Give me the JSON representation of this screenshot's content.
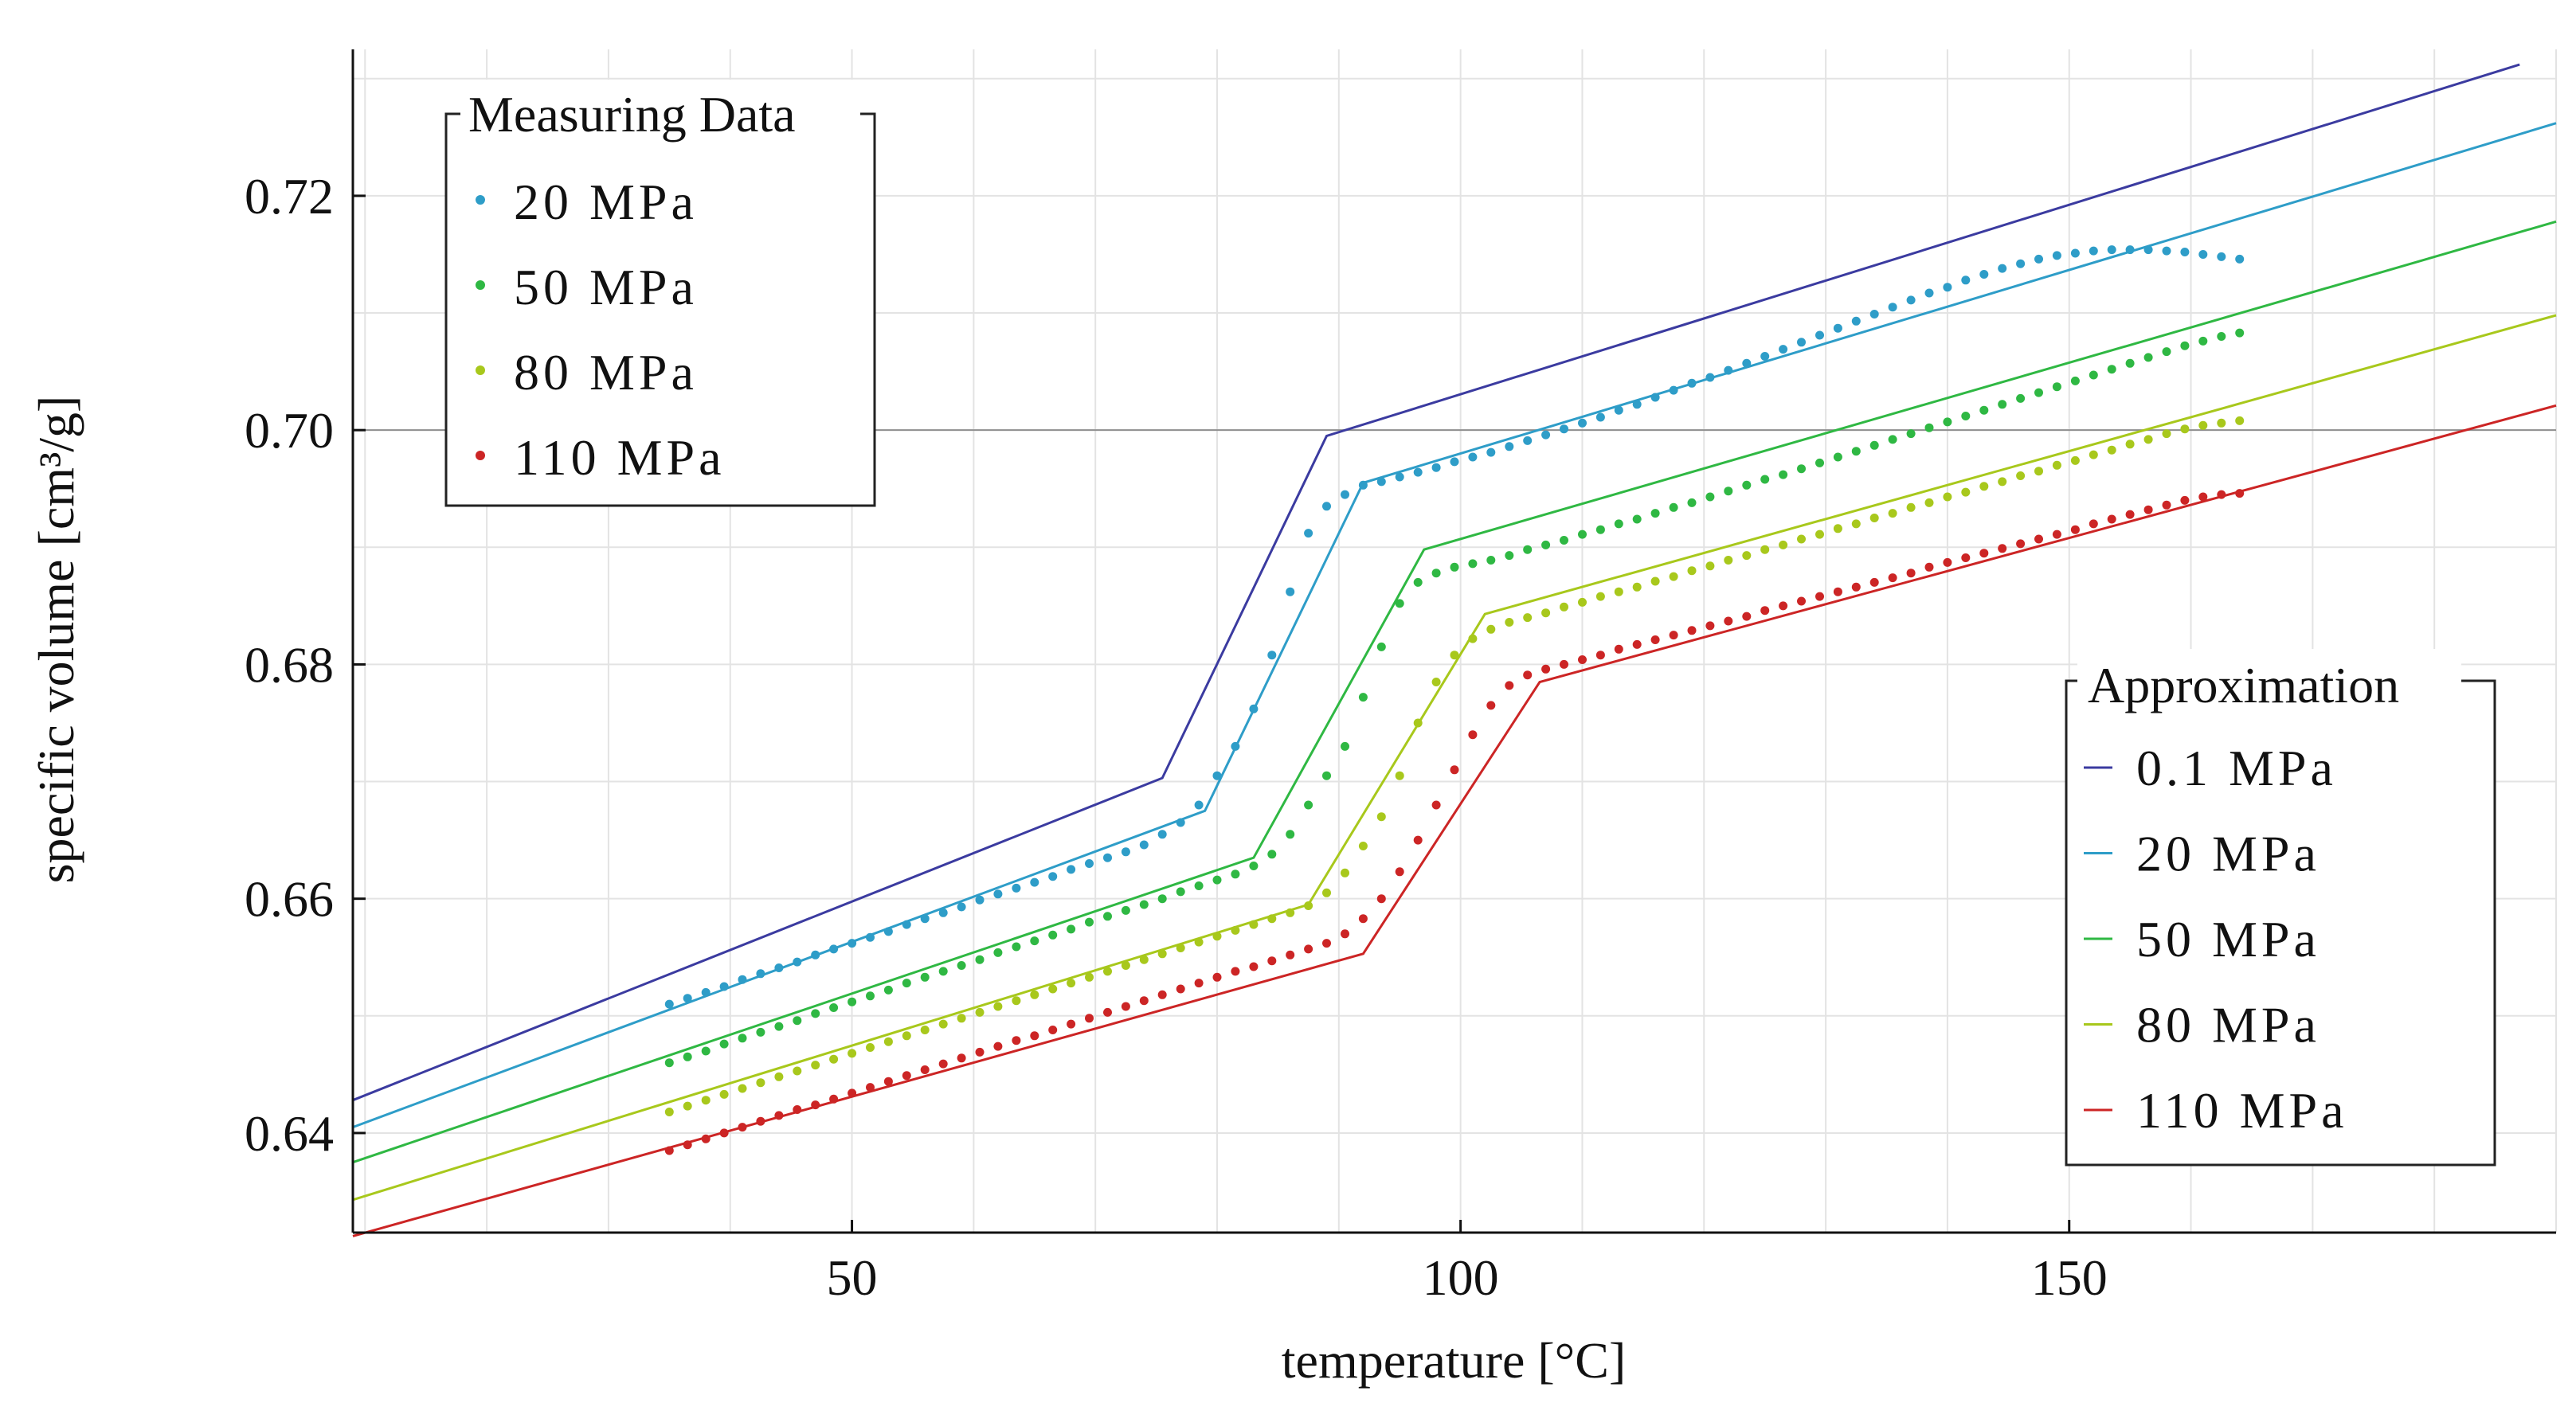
{
  "chart_data": {
    "type": "scatter",
    "xlabel": "temperature [°C]",
    "ylabel": "specific volume [cm³/g]",
    "xlim": [
      9,
      190
    ],
    "ylim": [
      0.6315,
      0.7325
    ],
    "x_ticks": [
      50,
      100,
      150
    ],
    "x_tick_labels": [
      "50",
      "100",
      "150"
    ],
    "y_ticks": [
      0.64,
      0.66,
      0.68,
      0.7,
      0.72
    ],
    "y_tick_labels": [
      "0.64",
      "0.66",
      "0.68",
      "0.70",
      "0.72"
    ],
    "x_minor_step": 10,
    "y_minor_step": 0.01,
    "highlight_y": 0.7,
    "grid": true,
    "measuring_legend": {
      "title": "Measuring Data",
      "position": "top-left",
      "entries": [
        "20 MPa",
        "50 MPa",
        "80 MPa",
        "110 MPa"
      ]
    },
    "approximation_legend": {
      "title": "Approximation",
      "position": "bottom-right",
      "entries": [
        "0.1 MPa",
        "20 MPa",
        "50 MPa",
        "80 MPa",
        "110 MPa"
      ]
    },
    "approximation_series": [
      {
        "name": "0.1 MPa",
        "color": "#3b3ba0",
        "x": [
          9,
          75.5,
          89,
          187
        ],
        "y": [
          0.6428,
          0.6703,
          0.6995,
          0.7312
        ]
      },
      {
        "name": "20 MPa",
        "color": "#2e9dc8",
        "x": [
          9,
          79,
          92,
          190
        ],
        "y": [
          0.6405,
          0.6675,
          0.6955,
          0.7262
        ]
      },
      {
        "name": "50 MPa",
        "color": "#2fb843",
        "x": [
          9,
          83,
          97,
          190
        ],
        "y": [
          0.6375,
          0.6635,
          0.6898,
          0.7178
        ]
      },
      {
        "name": "80 MPa",
        "color": "#a8c81c",
        "x": [
          9,
          87.5,
          102,
          190
        ],
        "y": [
          0.6343,
          0.6595,
          0.6843,
          0.7098
        ]
      },
      {
        "name": "110 MPa",
        "color": "#cc2525",
        "x": [
          9,
          92,
          106.5,
          190
        ],
        "y": [
          0.6312,
          0.6553,
          0.6785,
          0.7021
        ]
      }
    ],
    "measuring_series": [
      {
        "name": "20 MPa",
        "color": "#2e9dc8",
        "x": [
          35,
          36.5,
          38,
          39.5,
          41,
          42.5,
          44,
          45.5,
          47,
          48.5,
          50,
          51.5,
          53,
          54.5,
          56,
          57.5,
          59,
          60.5,
          62,
          63.5,
          65,
          66.5,
          68,
          69.5,
          71,
          72.5,
          74,
          75.5,
          77,
          78.5,
          80,
          81.5,
          83,
          84.5,
          86,
          87.5,
          89,
          90.5,
          92,
          93.5,
          95,
          96.5,
          98,
          99.5,
          101,
          102.5,
          104,
          105.5,
          107,
          108.5,
          110,
          111.5,
          113,
          114.5,
          116,
          117.5,
          119,
          120.5,
          122,
          123.5,
          125,
          126.5,
          128,
          129.5,
          131,
          132.5,
          134,
          135.5,
          137,
          138.5,
          140,
          141.5,
          143,
          144.5,
          146,
          147.5,
          149,
          150.5,
          152,
          153.5,
          155,
          156.5,
          158,
          159.5,
          161,
          162.5,
          164
        ],
        "y": [
          0.651,
          0.6515,
          0.652,
          0.6525,
          0.6531,
          0.6536,
          0.6541,
          0.6546,
          0.6552,
          0.6557,
          0.6562,
          0.6567,
          0.6572,
          0.6578,
          0.6583,
          0.6588,
          0.6593,
          0.6599,
          0.6604,
          0.6609,
          0.6614,
          0.6619,
          0.6625,
          0.663,
          0.6635,
          0.664,
          0.6646,
          0.6655,
          0.6665,
          0.668,
          0.6705,
          0.673,
          0.6762,
          0.6808,
          0.6862,
          0.6912,
          0.6935,
          0.6945,
          0.6953,
          0.6956,
          0.696,
          0.6964,
          0.6968,
          0.6973,
          0.6977,
          0.6981,
          0.6986,
          0.6991,
          0.6996,
          0.7001,
          0.7006,
          0.7011,
          0.7017,
          0.7022,
          0.7028,
          0.7034,
          0.704,
          0.7045,
          0.7051,
          0.7057,
          0.7063,
          0.7069,
          0.7075,
          0.7081,
          0.7087,
          0.7093,
          0.7099,
          0.7105,
          0.7111,
          0.7117,
          0.7122,
          0.7128,
          0.7133,
          0.7138,
          0.7142,
          0.7146,
          0.7149,
          0.7151,
          0.7153,
          0.7154,
          0.7154,
          0.7154,
          0.7153,
          0.7152,
          0.715,
          0.7148,
          0.7146
        ]
      },
      {
        "name": "50 MPa",
        "color": "#2fb843",
        "x": [
          35,
          36.5,
          38,
          39.5,
          41,
          42.5,
          44,
          45.5,
          47,
          48.5,
          50,
          51.5,
          53,
          54.5,
          56,
          57.5,
          59,
          60.5,
          62,
          63.5,
          65,
          66.5,
          68,
          69.5,
          71,
          72.5,
          74,
          75.5,
          77,
          78.5,
          80,
          81.5,
          83,
          84.5,
          86,
          87.5,
          89,
          90.5,
          92,
          93.5,
          95,
          96.5,
          98,
          99.5,
          101,
          102.5,
          104,
          105.5,
          107,
          108.5,
          110,
          111.5,
          113,
          114.5,
          116,
          117.5,
          119,
          120.5,
          122,
          123.5,
          125,
          126.5,
          128,
          129.5,
          131,
          132.5,
          134,
          135.5,
          137,
          138.5,
          140,
          141.5,
          143,
          144.5,
          146,
          147.5,
          149,
          150.5,
          152,
          153.5,
          155,
          156.5,
          158,
          159.5,
          161,
          162.5,
          164
        ],
        "y": [
          0.646,
          0.6465,
          0.647,
          0.6476,
          0.6481,
          0.6486,
          0.6491,
          0.6496,
          0.6502,
          0.6507,
          0.6512,
          0.6517,
          0.6522,
          0.6528,
          0.6533,
          0.6538,
          0.6543,
          0.6548,
          0.6554,
          0.6559,
          0.6564,
          0.6569,
          0.6574,
          0.658,
          0.6585,
          0.659,
          0.6595,
          0.66,
          0.6606,
          0.6611,
          0.6616,
          0.6621,
          0.6628,
          0.6638,
          0.6655,
          0.668,
          0.6705,
          0.673,
          0.6772,
          0.6815,
          0.6852,
          0.687,
          0.6878,
          0.6883,
          0.6886,
          0.6889,
          0.6893,
          0.6898,
          0.6902,
          0.6906,
          0.6911,
          0.6915,
          0.692,
          0.6924,
          0.6929,
          0.6934,
          0.6938,
          0.6943,
          0.6948,
          0.6953,
          0.6958,
          0.6962,
          0.6967,
          0.6972,
          0.6977,
          0.6982,
          0.6987,
          0.6992,
          0.6997,
          0.7002,
          0.7007,
          0.7012,
          0.7017,
          0.7022,
          0.7027,
          0.7032,
          0.7037,
          0.7042,
          0.7047,
          0.7052,
          0.7057,
          0.7062,
          0.7067,
          0.7072,
          0.7076,
          0.708,
          0.7083
        ]
      },
      {
        "name": "80 MPa",
        "color": "#a8c81c",
        "x": [
          35,
          36.5,
          38,
          39.5,
          41,
          42.5,
          44,
          45.5,
          47,
          48.5,
          50,
          51.5,
          53,
          54.5,
          56,
          57.5,
          59,
          60.5,
          62,
          63.5,
          65,
          66.5,
          68,
          69.5,
          71,
          72.5,
          74,
          75.5,
          77,
          78.5,
          80,
          81.5,
          83,
          84.5,
          86,
          87.5,
          89,
          90.5,
          92,
          93.5,
          95,
          96.5,
          98,
          99.5,
          101,
          102.5,
          104,
          105.5,
          107,
          108.5,
          110,
          111.5,
          113,
          114.5,
          116,
          117.5,
          119,
          120.5,
          122,
          123.5,
          125,
          126.5,
          128,
          129.5,
          131,
          132.5,
          134,
          135.5,
          137,
          138.5,
          140,
          141.5,
          143,
          144.5,
          146,
          147.5,
          149,
          150.5,
          152,
          153.5,
          155,
          156.5,
          158,
          159.5,
          161,
          162.5,
          164
        ],
        "y": [
          0.6418,
          0.6423,
          0.6428,
          0.6433,
          0.6438,
          0.6443,
          0.6448,
          0.6453,
          0.6458,
          0.6463,
          0.6468,
          0.6473,
          0.6478,
          0.6483,
          0.6488,
          0.6493,
          0.6498,
          0.6503,
          0.6508,
          0.6513,
          0.6518,
          0.6523,
          0.6528,
          0.6533,
          0.6538,
          0.6543,
          0.6548,
          0.6553,
          0.6558,
          0.6563,
          0.6568,
          0.6573,
          0.6578,
          0.6583,
          0.6588,
          0.6594,
          0.6605,
          0.6622,
          0.6645,
          0.667,
          0.6705,
          0.675,
          0.6785,
          0.6808,
          0.6822,
          0.683,
          0.6836,
          0.684,
          0.6844,
          0.6849,
          0.6853,
          0.6858,
          0.6862,
          0.6866,
          0.6871,
          0.6875,
          0.688,
          0.6884,
          0.6889,
          0.6893,
          0.6898,
          0.6902,
          0.6907,
          0.6911,
          0.6916,
          0.692,
          0.6925,
          0.6929,
          0.6934,
          0.6938,
          0.6943,
          0.6947,
          0.6952,
          0.6956,
          0.6961,
          0.6965,
          0.697,
          0.6974,
          0.6979,
          0.6983,
          0.6988,
          0.6992,
          0.6997,
          0.7001,
          0.7004,
          0.7006,
          0.7008
        ]
      },
      {
        "name": "110 MPa",
        "color": "#cc2525",
        "x": [
          35,
          36.5,
          38,
          39.5,
          41,
          42.5,
          44,
          45.5,
          47,
          48.5,
          50,
          51.5,
          53,
          54.5,
          56,
          57.5,
          59,
          60.5,
          62,
          63.5,
          65,
          66.5,
          68,
          69.5,
          71,
          72.5,
          74,
          75.5,
          77,
          78.5,
          80,
          81.5,
          83,
          84.5,
          86,
          87.5,
          89,
          90.5,
          92,
          93.5,
          95,
          96.5,
          98,
          99.5,
          101,
          102.5,
          104,
          105.5,
          107,
          108.5,
          110,
          111.5,
          113,
          114.5,
          116,
          117.5,
          119,
          120.5,
          122,
          123.5,
          125,
          126.5,
          128,
          129.5,
          131,
          132.5,
          134,
          135.5,
          137,
          138.5,
          140,
          141.5,
          143,
          144.5,
          146,
          147.5,
          149,
          150.5,
          152,
          153.5,
          155,
          156.5,
          158,
          159.5,
          161,
          162.5,
          164
        ],
        "y": [
          0.6385,
          0.639,
          0.6395,
          0.64,
          0.6405,
          0.641,
          0.6415,
          0.642,
          0.6424,
          0.6429,
          0.6434,
          0.6439,
          0.6444,
          0.6449,
          0.6454,
          0.6459,
          0.6464,
          0.6469,
          0.6474,
          0.6479,
          0.6483,
          0.6488,
          0.6493,
          0.6498,
          0.6503,
          0.6508,
          0.6513,
          0.6518,
          0.6523,
          0.6528,
          0.6533,
          0.6538,
          0.6542,
          0.6547,
          0.6552,
          0.6557,
          0.6562,
          0.657,
          0.6583,
          0.66,
          0.6623,
          0.665,
          0.668,
          0.671,
          0.674,
          0.6765,
          0.6782,
          0.6791,
          0.6796,
          0.68,
          0.6804,
          0.6808,
          0.6813,
          0.6817,
          0.6821,
          0.6825,
          0.6829,
          0.6833,
          0.6837,
          0.6841,
          0.6846,
          0.685,
          0.6854,
          0.6858,
          0.6862,
          0.6866,
          0.687,
          0.6874,
          0.6878,
          0.6883,
          0.6887,
          0.6891,
          0.6895,
          0.6899,
          0.6903,
          0.6907,
          0.6911,
          0.6915,
          0.692,
          0.6924,
          0.6928,
          0.6932,
          0.6936,
          0.694,
          0.6943,
          0.6945,
          0.6946
        ]
      }
    ]
  }
}
